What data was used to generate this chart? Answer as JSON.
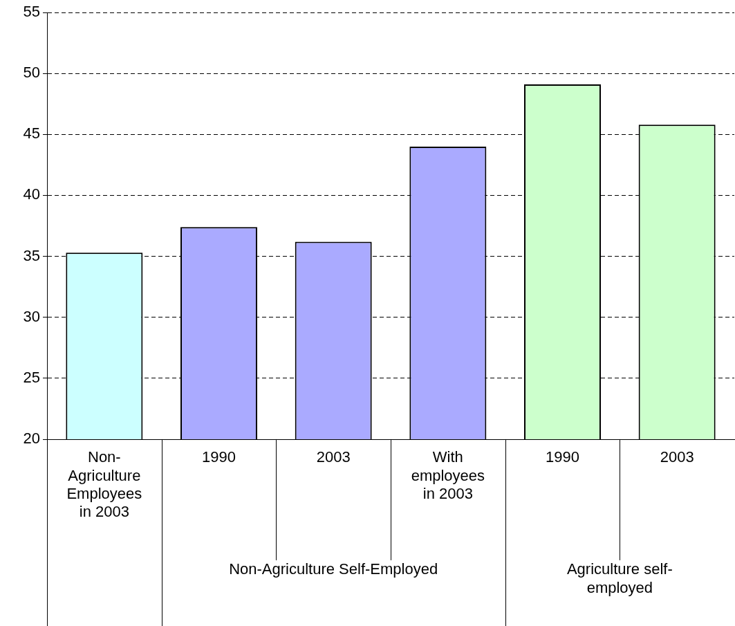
{
  "chart_data": {
    "type": "bar",
    "categories": [
      "Non-Agriculture Employees in 2003",
      "1990",
      "2003",
      "With employees in 2003",
      "1990",
      "2003"
    ],
    "values": [
      35.3,
      37.4,
      36.2,
      44.0,
      49.1,
      45.8
    ],
    "colors": [
      "#ccffff",
      "#aaaaff",
      "#aaaaff",
      "#aaaaff",
      "#ccffcc",
      "#ccffcc"
    ],
    "ylim": [
      20,
      55
    ],
    "yticks": [
      20,
      25,
      30,
      35,
      40,
      45,
      50,
      55
    ],
    "grid": "y",
    "legend": false,
    "annotations": [
      "Non-Agriculture Self-Employed",
      "Agriculture self-employed"
    ]
  }
}
